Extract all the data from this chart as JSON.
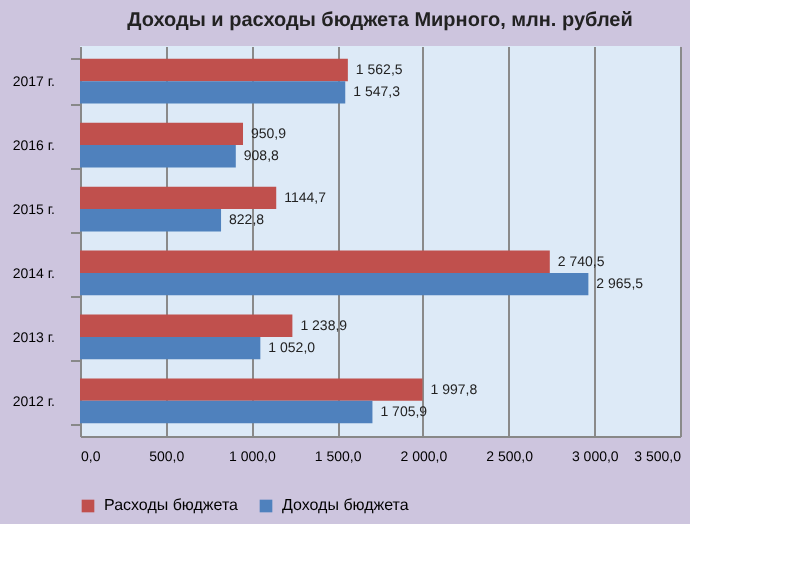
{
  "chart_data": {
    "type": "bar",
    "orientation": "horizontal",
    "title": "Доходы и расходы бюджета Мирного, млн. рублей",
    "categories": [
      "2017 г.",
      "2016 г.",
      "2015 г.",
      "2014 г.",
      "2013 г.",
      "2012 г."
    ],
    "series": [
      {
        "name": "Расходы бюджета",
        "color": "#c0504d",
        "values": [
          1562.5,
          950.9,
          1144.7,
          2740.5,
          1238.9,
          1997.8
        ],
        "value_labels": [
          "1 562,5",
          "950,9",
          "1144,7",
          "2 740,5",
          "1 238,9",
          "1 997,8"
        ]
      },
      {
        "name": "Доходы бюджета",
        "color": "#4f81bd",
        "values": [
          1547.3,
          908.8,
          822.8,
          2965.5,
          1052.0,
          1705.9
        ],
        "value_labels": [
          "1 547,3",
          "908,8",
          "822,8",
          "2 965,5",
          "1 052,0",
          "1 705,9"
        ]
      }
    ],
    "xlim": [
      0,
      3500
    ],
    "xticks": [
      {
        "value": 0,
        "label": "0,0"
      },
      {
        "value": 500,
        "label": "500,0"
      },
      {
        "value": 1000,
        "label": "1 000,0"
      },
      {
        "value": 1500,
        "label": "1 500,0"
      },
      {
        "value": 2000,
        "label": "2 000,0"
      },
      {
        "value": 2500,
        "label": "2 500,0"
      },
      {
        "value": 3000,
        "label": "3 000,0"
      },
      {
        "value": 3500,
        "label": "3 500,0"
      }
    ],
    "grid": "x",
    "legend": "bottom"
  }
}
